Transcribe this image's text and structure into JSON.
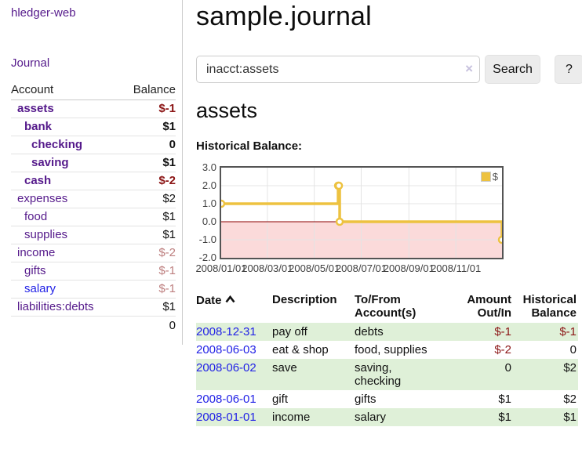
{
  "colors": {
    "link_purple": "#551A8B",
    "link_blue": "#2222E6",
    "negative_strong": "#8b1515",
    "negative_faded": "#bd7e7e",
    "row_stripe_green": "#dff0d8",
    "chart_line_gold": "#edc240",
    "chart_negative_fill": "#fbdada",
    "chart_zero_line": "#8b0000",
    "chart_border": "#545454"
  },
  "sidebar": {
    "app_title": "hledger-web",
    "journal_label": "Journal",
    "accounts_table": {
      "headers": {
        "account": "Account",
        "balance": "Balance"
      },
      "rows": [
        {
          "account": "assets",
          "balance": "$-1",
          "indent": 1,
          "bold": true,
          "balance_tone": "neg-strong"
        },
        {
          "account": "bank",
          "balance": "$1",
          "indent": 2,
          "bold": true,
          "balance_tone": "normal"
        },
        {
          "account": "checking",
          "balance": "0",
          "indent": 3,
          "bold": true,
          "balance_tone": "normal"
        },
        {
          "account": "saving",
          "balance": "$1",
          "indent": 3,
          "bold": true,
          "balance_tone": "normal"
        },
        {
          "account": "cash",
          "balance": "$-2",
          "indent": 2,
          "bold": true,
          "balance_tone": "neg-strong"
        },
        {
          "account": "expenses",
          "balance": "$2",
          "indent": 1,
          "bold": false,
          "balance_tone": "normal"
        },
        {
          "account": "food",
          "balance": "$1",
          "indent": 2,
          "bold": false,
          "balance_tone": "normal"
        },
        {
          "account": "supplies",
          "balance": "$1",
          "indent": 2,
          "bold": false,
          "balance_tone": "normal"
        },
        {
          "account": "income",
          "balance": "$-2",
          "indent": 1,
          "bold": false,
          "balance_tone": "neg-faded"
        },
        {
          "account": "gifts",
          "balance": "$-1",
          "indent": 2,
          "bold": false,
          "balance_tone": "neg-faded"
        },
        {
          "account": "salary",
          "balance": "$-1",
          "indent": 2,
          "bold": false,
          "balance_tone": "neg-faded",
          "link_tone": "blue"
        },
        {
          "account": "liabilities:debts",
          "balance": "$1",
          "indent": 1,
          "bold": false,
          "balance_tone": "normal"
        }
      ],
      "total": "0"
    }
  },
  "header": {
    "title": "sample.journal"
  },
  "search": {
    "value": "inacct:assets",
    "clear_icon": "×",
    "button_label": "Search",
    "help_label": "?"
  },
  "account_page": {
    "title": "assets",
    "chart_label": "Historical Balance:"
  },
  "chart_data": {
    "type": "line",
    "title": "Historical Balance:",
    "step": true,
    "series": [
      {
        "name": "$",
        "color": "#edc240",
        "points": [
          {
            "date": "2008-01-01",
            "value": 1
          },
          {
            "date": "2008-06-01",
            "value": 2
          },
          {
            "date": "2008-06-02",
            "value": 2
          },
          {
            "date": "2008-06-03",
            "value": 0
          },
          {
            "date": "2008-12-31",
            "value": -1
          }
        ]
      }
    ],
    "xlim": [
      "2008-01-01",
      "2008-12-31"
    ],
    "ylim": [
      -2,
      3
    ],
    "x_ticks": [
      "2008/01/01",
      "2008/03/01",
      "2008/05/01",
      "2008/07/01",
      "2008/09/01",
      "2008/11/01"
    ],
    "y_ticks": [
      3.0,
      2.0,
      1.0,
      0.0,
      -1.0,
      -2.0
    ],
    "grid": true,
    "legend": {
      "label": "$",
      "position": "top-right"
    },
    "negative_region_fill": "#fbdada",
    "zero_line_color": "#8b0000"
  },
  "register_table": {
    "headers": {
      "date": "Date",
      "description": "Description",
      "accounts": "To/From Account(s)",
      "amount": "Amount Out/In",
      "balance": "Historical Balance"
    },
    "rows": [
      {
        "date": "2008-12-31",
        "description": "pay off",
        "accounts": "debts",
        "amount": "$-1",
        "amount_neg": true,
        "balance": "$-1",
        "balance_neg": true,
        "striped": true
      },
      {
        "date": "2008-06-03",
        "description": "eat & shop",
        "accounts": "food, supplies",
        "amount": "$-2",
        "amount_neg": true,
        "balance": "0",
        "balance_neg": false,
        "striped": false
      },
      {
        "date": "2008-06-02",
        "description": "save",
        "accounts": "saving,\nchecking",
        "amount": "0",
        "amount_neg": false,
        "balance": "$2",
        "balance_neg": false,
        "striped": true
      },
      {
        "date": "2008-06-01",
        "description": "gift",
        "accounts": "gifts",
        "amount": "$1",
        "amount_neg": false,
        "balance": "$2",
        "balance_neg": false,
        "striped": false
      },
      {
        "date": "2008-01-01",
        "description": "income",
        "accounts": "salary",
        "amount": "$1",
        "amount_neg": false,
        "balance": "$1",
        "balance_neg": false,
        "striped": true
      }
    ]
  }
}
